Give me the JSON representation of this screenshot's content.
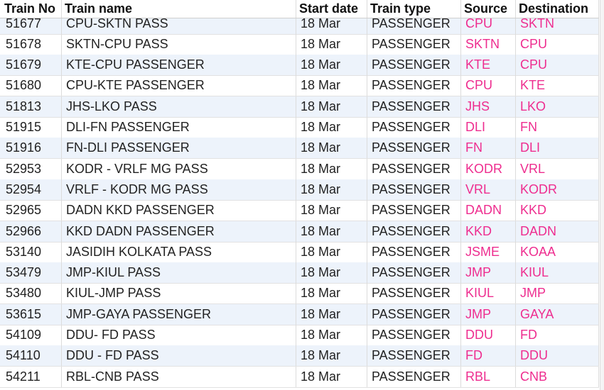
{
  "table": {
    "header": [
      "Train No",
      "Train name",
      "Start date",
      "Train type",
      "Source",
      "Destination"
    ],
    "rows": [
      [
        "51677",
        "CPU-SKTN PASS",
        "18 Mar",
        "PASSENGER",
        "CPU",
        "SKTN"
      ],
      [
        "51678",
        "SKTN-CPU PASS",
        "18 Mar",
        "PASSENGER",
        "SKTN",
        "CPU"
      ],
      [
        "51679",
        "KTE-CPU PASSENGER",
        "18 Mar",
        "PASSENGER",
        "KTE",
        "CPU"
      ],
      [
        "51680",
        "CPU-KTE PASSENGER",
        "18 Mar",
        "PASSENGER",
        "CPU",
        "KTE"
      ],
      [
        "51813",
        "JHS-LKO PASS",
        "18 Mar",
        "PASSENGER",
        "JHS",
        "LKO"
      ],
      [
        "51915",
        "DLI-FN PASSENGER",
        "18 Mar",
        "PASSENGER",
        "DLI",
        "FN"
      ],
      [
        "51916",
        "FN-DLI PASSENGER",
        "18 Mar",
        "PASSENGER",
        "FN",
        "DLI"
      ],
      [
        "52953",
        "KODR - VRLF MG PASS",
        "18 Mar",
        "PASSENGER",
        "KODR",
        "VRL"
      ],
      [
        "52954",
        "VRLF - KODR MG PASS",
        "18 Mar",
        "PASSENGER",
        "VRL",
        "KODR"
      ],
      [
        "52965",
        "DADN KKD PASSENGER",
        "18 Mar",
        "PASSENGER",
        "DADN",
        "KKD"
      ],
      [
        "52966",
        "KKD DADN PASSENGER",
        "18 Mar",
        "PASSENGER",
        "KKD",
        "DADN"
      ],
      [
        "53140",
        "JASIDIH KOLKATA PASS",
        "18 Mar",
        "PASSENGER",
        "JSME",
        "KOAA"
      ],
      [
        "53479",
        "JMP-KIUL PASS",
        "18 Mar",
        "PASSENGER",
        "JMP",
        "KIUL"
      ],
      [
        "53480",
        "KIUL-JMP PASS",
        "18 Mar",
        "PASSENGER",
        "KIUL",
        "JMP"
      ],
      [
        "53615",
        "JMP-GAYA PASSENGER",
        "18 Mar",
        "PASSENGER",
        "JMP",
        "GAYA"
      ],
      [
        "54109",
        "DDU- FD PASS",
        "18 Mar",
        "PASSENGER",
        "DDU",
        "FD"
      ],
      [
        "54110",
        "DDU - FD PASS",
        "18 Mar",
        "PASSENGER",
        "FD",
        "DDU"
      ],
      [
        "54211",
        "RBL-CNB PASS",
        "18 Mar",
        "PASSENGER",
        "RBL",
        "CNB"
      ]
    ]
  }
}
